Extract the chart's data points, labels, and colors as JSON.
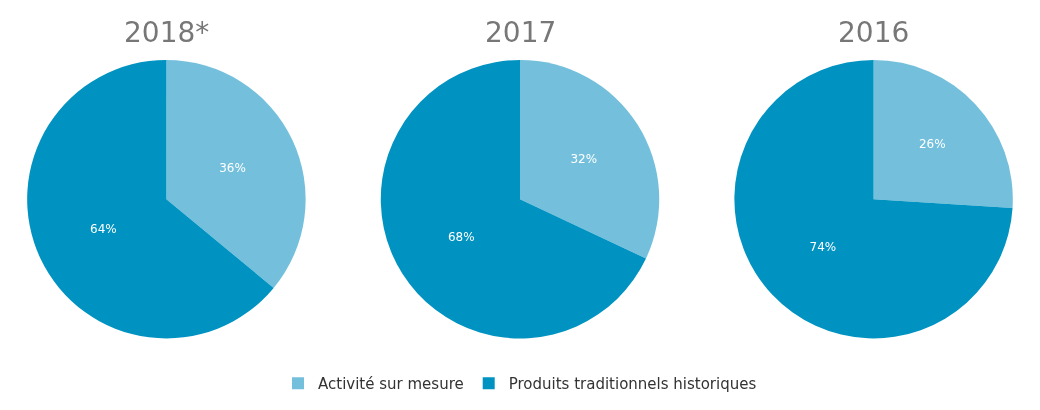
{
  "chart_data": {
    "type": "pie",
    "categories": [
      "Activité sur mesure",
      "Produits traditionnels historiques"
    ],
    "colors": [
      "#74c0dc",
      "#0093c2"
    ],
    "legend": "bottom",
    "series": [
      {
        "name": "2018*",
        "values": [
          36,
          64
        ],
        "value_labels": [
          "36%",
          "64%"
        ]
      },
      {
        "name": "2017",
        "values": [
          32,
          68
        ],
        "value_labels": [
          "32%",
          "68%"
        ]
      },
      {
        "name": "2016",
        "values": [
          26,
          74
        ],
        "value_labels": [
          "26%",
          "74%"
        ]
      }
    ]
  }
}
